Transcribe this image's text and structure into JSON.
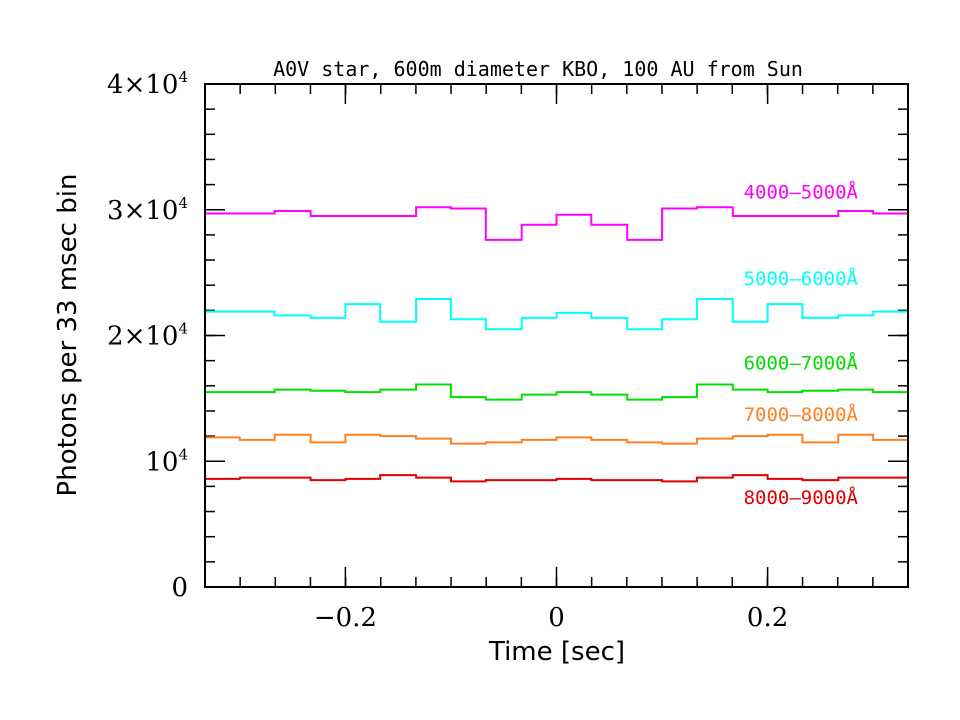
{
  "chart_data": {
    "type": "line",
    "title": "A0V star, 600m diameter KBO, 100 AU from Sun",
    "xlabel": "Time [sec]",
    "ylabel": "Photons per 33 msec bin",
    "xlim": [
      -0.333,
      0.333
    ],
    "ylim": [
      0,
      40000
    ],
    "x_ticks": [
      {
        "value": -0.2,
        "label": "−0.2"
      },
      {
        "value": 0,
        "label": "0"
      },
      {
        "value": 0.2,
        "label": "0.2"
      }
    ],
    "x_minor_step": 0.0333,
    "y_ticks": [
      {
        "value": 0,
        "label": "0",
        "base": "0",
        "exp": ""
      },
      {
        "value": 10000,
        "label": "10⁴",
        "base": "10",
        "exp": "4"
      },
      {
        "value": 20000,
        "label": "2×10⁴",
        "base": "2×10",
        "exp": "4"
      },
      {
        "value": 30000,
        "label": "3×10⁴",
        "base": "3×10",
        "exp": "4"
      },
      {
        "value": 40000,
        "label": "4×10⁴",
        "base": "4×10",
        "exp": "4"
      }
    ],
    "y_minor_step": 2000,
    "grid": false,
    "legend": "inline labels at right",
    "bin_edges": [
      -0.333,
      -0.3,
      -0.267,
      -0.233,
      -0.2,
      -0.167,
      -0.133,
      -0.1,
      -0.067,
      -0.033,
      0.0,
      0.033,
      0.067,
      0.1,
      0.133,
      0.167,
      0.2,
      0.233,
      0.267,
      0.3,
      0.333
    ],
    "series": [
      {
        "name": "4000–5000Å",
        "color": "#ff00ff",
        "label_y": 30900,
        "values": [
          29700,
          29700,
          29900,
          29500,
          29500,
          29500,
          30200,
          30100,
          27600,
          28800,
          29600,
          28800,
          27600,
          30100,
          30200,
          29500,
          29500,
          29500,
          29900,
          29700
        ]
      },
      {
        "name": "5000–6000Å",
        "color": "#00ffff",
        "label_y": 24000,
        "values": [
          21900,
          21900,
          21600,
          21400,
          22500,
          21100,
          22900,
          21300,
          20500,
          21400,
          21800,
          21400,
          20500,
          21300,
          22900,
          21100,
          22500,
          21400,
          21600,
          21900
        ]
      },
      {
        "name": "6000–7000Å",
        "color": "#00e000",
        "label_y": 17300,
        "values": [
          15500,
          15500,
          15700,
          15600,
          15500,
          15700,
          16100,
          15100,
          14900,
          15300,
          15500,
          15300,
          14900,
          15100,
          16100,
          15700,
          15500,
          15600,
          15700,
          15500
        ]
      },
      {
        "name": "7000–8000Å",
        "color": "#ff8020",
        "label_y": 13200,
        "values": [
          11900,
          11700,
          12100,
          11500,
          12100,
          12000,
          11800,
          11400,
          11500,
          11700,
          11900,
          11700,
          11500,
          11400,
          11800,
          12000,
          12100,
          11500,
          12100,
          11700
        ]
      },
      {
        "name": "8000–9000Å",
        "color": "#e00000",
        "label_y": 6600,
        "values": [
          8600,
          8700,
          8700,
          8500,
          8600,
          8900,
          8700,
          8400,
          8500,
          8500,
          8600,
          8500,
          8500,
          8400,
          8700,
          8900,
          8600,
          8500,
          8700,
          8700
        ]
      }
    ]
  }
}
